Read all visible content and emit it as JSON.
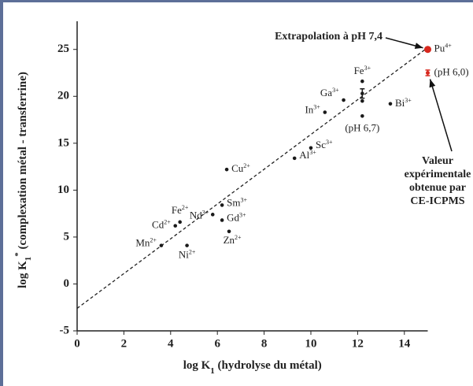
{
  "chart_data": {
    "type": "scatter",
    "x_label": {
      "text": "log K",
      "sub": "1",
      "rest": " (hydrolyse du métal)"
    },
    "y_label": {
      "text": "log K",
      "sub": "1",
      "sup": "*",
      "rest": " (complexation métal - transferrine)"
    },
    "xlim": [
      0,
      15
    ],
    "ylim": [
      -5,
      28
    ],
    "xticks": [
      0,
      2,
      4,
      6,
      8,
      10,
      12,
      14
    ],
    "yticks": [
      -5,
      0,
      5,
      10,
      15,
      20,
      25
    ],
    "series": [
      {
        "color": "#1a1a1a",
        "x": [
          12.2,
          12.2,
          12.2,
          12.2,
          11.4,
          10.6,
          13.4,
          10.0,
          9.3,
          6.4,
          6.2,
          6.2,
          5.8,
          6.5,
          4.4,
          4.2,
          3.6,
          4.7
        ],
        "values": [
          21.6,
          20.3,
          19.5,
          17.9,
          19.6,
          18.3,
          19.2,
          14.5,
          13.4,
          12.2,
          8.4,
          6.8,
          7.4,
          5.6,
          6.6,
          6.2,
          4.1,
          4.1
        ],
        "errors": [
          null,
          0.5,
          null,
          null,
          null,
          null,
          null,
          null,
          null,
          null,
          null,
          null,
          null,
          null,
          null,
          null,
          null,
          null
        ],
        "labels": [
          "Fe",
          null,
          null,
          "(pH 6,7)",
          "Ga",
          "In",
          "Bi",
          "Sc",
          "Al",
          "Cu",
          "Sm",
          "Gd",
          "Nd",
          "Zn",
          "Fe",
          "Cd",
          "Mn",
          "Ni"
        ],
        "charges": [
          "3+",
          null,
          null,
          null,
          "3+",
          "3+",
          "3+",
          "3+",
          "3+",
          "2+",
          "3+",
          "3+",
          "3+",
          "2+",
          "2+",
          "2+",
          "2+",
          "2+"
        ]
      },
      {
        "color": "#d8281e",
        "x": [
          15.0,
          15.0
        ],
        "values": [
          25.0,
          22.5
        ],
        "errors": [
          null,
          0.3
        ],
        "labels": [
          "Pu",
          "(pH 6,0)"
        ],
        "charges": [
          "4+",
          null
        ]
      }
    ],
    "fit_line": {
      "x": [
        0,
        15
      ],
      "y": [
        -2.6,
        25.2
      ]
    },
    "annotations": [
      {
        "text": "Extrapolation à pH 7,4"
      },
      {
        "lines": [
          "Valeur",
          "expérimentale",
          "obtenue par",
          "CE-ICPMS"
        ]
      }
    ]
  }
}
